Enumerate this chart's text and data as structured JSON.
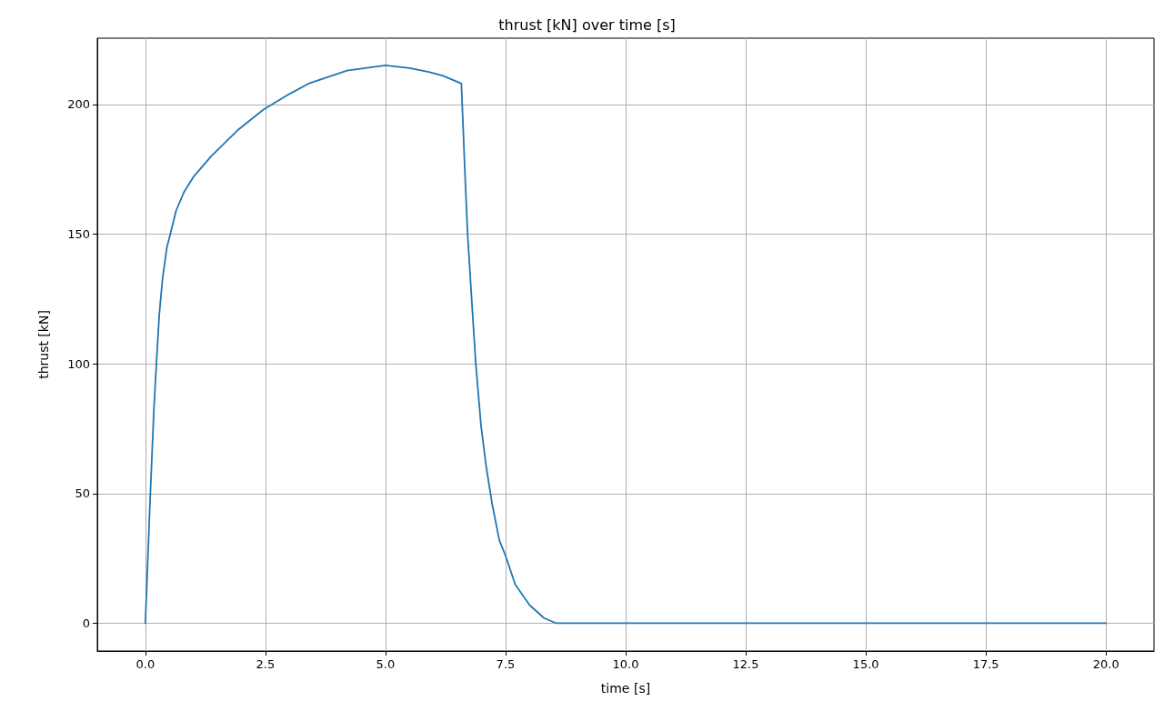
{
  "chart_data": {
    "type": "line",
    "title": "thrust [kN] over time [s]",
    "xlabel": "time [s]",
    "ylabel": "thrust [kN]",
    "x": [
      0,
      0.1,
      0.18,
      0.23,
      0.29,
      0.36,
      0.45,
      0.52,
      0.64,
      0.8,
      1.0,
      1.37,
      1.92,
      2.46,
      3.0,
      3.4,
      4.2,
      5.0,
      5.5,
      5.9,
      6.2,
      6.58,
      6.66,
      6.71,
      6.79,
      6.88,
      6.99,
      7.1,
      7.22,
      7.37,
      7.5,
      7.7,
      8.0,
      8.3,
      8.56,
      10,
      15,
      20
    ],
    "series": [
      {
        "color": "#1f77b4",
        "values": [
          0,
          48,
          83,
          100,
          119,
          133,
          145,
          150,
          159,
          166,
          172,
          180,
          190,
          198,
          204,
          208,
          213,
          215,
          214,
          212.5,
          211,
          208,
          171,
          150,
          126,
          100,
          76,
          60,
          46,
          32,
          26,
          15,
          7,
          2,
          0,
          0,
          0,
          0
        ]
      }
    ],
    "xlim": [
      -1,
      21
    ],
    "xticks": [
      {
        "value": 0,
        "label": "0.0"
      },
      {
        "value": 2.5,
        "label": "2.5"
      },
      {
        "value": 5,
        "label": "5.0"
      },
      {
        "value": 7.5,
        "label": "7.5"
      },
      {
        "value": 10,
        "label": "10.0"
      },
      {
        "value": 12.5,
        "label": "12.5"
      },
      {
        "value": 15,
        "label": "15.0"
      },
      {
        "value": 17.5,
        "label": "17.5"
      },
      {
        "value": 20,
        "label": "20.0"
      }
    ],
    "ylim": [
      -10.7,
      225.5
    ],
    "yticks": [
      0,
      50,
      100,
      150,
      200
    ],
    "grid": true,
    "line_style": "solid"
  }
}
